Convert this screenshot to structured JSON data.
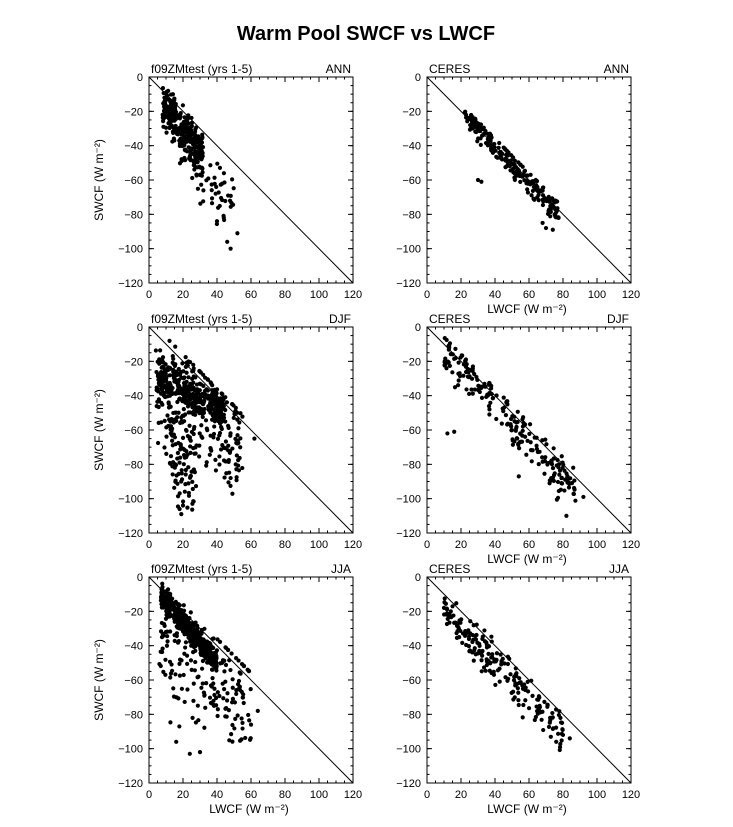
{
  "title": "Warm Pool SWCF vs LWCF",
  "colors": {
    "marker": "#000000",
    "frame": "#000000",
    "background": "#ffffff"
  },
  "chart_data": [
    {
      "type": "scatter",
      "left_label": "f09ZMtest (yrs 1-5)",
      "right_label": "ANN",
      "xlabel": "",
      "ylabel": "SWCF (W m⁻²)",
      "xlim": [
        0,
        120
      ],
      "ylim": [
        -120,
        0
      ],
      "xticks": [
        0,
        20,
        40,
        60,
        80,
        100,
        120
      ],
      "yticks": [
        0,
        -20,
        -40,
        -60,
        -80,
        -100,
        -120
      ],
      "reference_line": [
        [
          0,
          0
        ],
        [
          120,
          -120
        ]
      ],
      "clusters": [
        {
          "count": 320,
          "x": [
            8,
            32
          ],
          "slope": -1.25,
          "intercept": -6,
          "spread": 9,
          "dir": -1
        },
        {
          "count": 60,
          "x": [
            15,
            50
          ],
          "slope": -1.15,
          "intercept": -20,
          "spread": 13,
          "dir": -1
        }
      ],
      "points": [
        [
          48,
          -100
        ],
        [
          46,
          -96
        ],
        [
          52,
          -91
        ],
        [
          40,
          -84
        ],
        [
          44,
          -82
        ]
      ]
    },
    {
      "type": "scatter",
      "left_label": "CERES",
      "right_label": "ANN",
      "xlabel": "LWCF (W m⁻²)",
      "ylabel": "",
      "xlim": [
        0,
        120
      ],
      "ylim": [
        -120,
        0
      ],
      "xticks": [
        0,
        20,
        40,
        60,
        80,
        100,
        120
      ],
      "yticks": [
        0,
        -20,
        -40,
        -60,
        -80,
        -100,
        -120
      ],
      "reference_line": [
        [
          0,
          0
        ],
        [
          120,
          -120
        ]
      ],
      "clusters": [
        {
          "count": 230,
          "x": [
            22,
            78
          ],
          "slope": -1.02,
          "intercept": 0,
          "spread": 5,
          "dir": -1
        }
      ],
      "points": [
        [
          30,
          -60
        ],
        [
          32,
          -61
        ],
        [
          70,
          -88
        ],
        [
          74,
          -89
        ],
        [
          68,
          -85
        ]
      ]
    },
    {
      "type": "scatter",
      "left_label": "f09ZMtest (yrs 1-5)",
      "right_label": "DJF",
      "xlabel": "",
      "ylabel": "SWCF (W m⁻²)",
      "xlim": [
        0,
        120
      ],
      "ylim": [
        -120,
        0
      ],
      "xticks": [
        0,
        20,
        40,
        60,
        80,
        100,
        120
      ],
      "yticks": [
        0,
        -20,
        -40,
        -60,
        -80,
        -100,
        -120
      ],
      "reference_line": [
        [
          0,
          0
        ],
        [
          120,
          -120
        ]
      ],
      "clusters": [
        {
          "count": 300,
          "x": [
            5,
            45
          ],
          "slope": -0.55,
          "intercept": -25,
          "spread": 8,
          "dir": -1
        },
        {
          "count": 260,
          "x": [
            4,
            55
          ],
          "slope": -0.6,
          "intercept": -32,
          "spread": 25,
          "dir": -1
        },
        {
          "count": 80,
          "x": [
            12,
            28
          ],
          "slope": -0.8,
          "intercept": -65,
          "spread": 20,
          "dir": -1
        }
      ],
      "points": [
        [
          19,
          -109
        ],
        [
          18,
          -106
        ],
        [
          20,
          -104
        ],
        [
          62,
          -65
        ],
        [
          48,
          -88
        ]
      ]
    },
    {
      "type": "scatter",
      "left_label": "CERES",
      "right_label": "DJF",
      "xlabel": "LWCF (W m⁻²)",
      "ylabel": "",
      "xlim": [
        0,
        120
      ],
      "ylim": [
        -120,
        0
      ],
      "xticks": [
        0,
        20,
        40,
        60,
        80,
        100,
        120
      ],
      "yticks": [
        0,
        -20,
        -40,
        -60,
        -80,
        -100,
        -120
      ],
      "reference_line": [
        [
          0,
          0
        ],
        [
          120,
          -120
        ]
      ],
      "clusters": [
        {
          "count": 220,
          "x": [
            10,
            88
          ],
          "slope": -1.05,
          "intercept": -3,
          "spread": 10,
          "dir": -1
        }
      ],
      "points": [
        [
          12,
          -62
        ],
        [
          16,
          -61
        ],
        [
          54,
          -87
        ],
        [
          82,
          -110
        ],
        [
          92,
          -99
        ]
      ]
    },
    {
      "type": "scatter",
      "left_label": "f09ZMtest (yrs 1-5)",
      "right_label": "JJA",
      "xlabel": "LWCF (W m⁻²)",
      "ylabel": "SWCF (W m⁻²)",
      "xlim": [
        0,
        120
      ],
      "ylim": [
        -120,
        0
      ],
      "xticks": [
        0,
        20,
        40,
        60,
        80,
        100,
        120
      ],
      "yticks": [
        0,
        -20,
        -40,
        -60,
        -80,
        -100,
        -120
      ],
      "reference_line": [
        [
          0,
          0
        ],
        [
          120,
          -120
        ]
      ],
      "clusters": [
        {
          "count": 420,
          "x": [
            7,
            40
          ],
          "slope": -1.15,
          "intercept": -3,
          "spread": 5,
          "dir": -1
        },
        {
          "count": 200,
          "x": [
            6,
            60
          ],
          "slope": -0.55,
          "intercept": -38,
          "spread": 25,
          "dir": -1
        }
      ],
      "points": [
        [
          24,
          -103
        ],
        [
          30,
          -102
        ],
        [
          16,
          -96
        ],
        [
          60,
          -86
        ],
        [
          64,
          -78
        ],
        [
          55,
          -85
        ]
      ]
    },
    {
      "type": "scatter",
      "left_label": "CERES",
      "right_label": "JJA",
      "xlabel": "LWCF (W m⁻²)",
      "ylabel": "",
      "xlim": [
        0,
        120
      ],
      "ylim": [
        -120,
        0
      ],
      "xticks": [
        0,
        20,
        40,
        60,
        80,
        100,
        120
      ],
      "yticks": [
        0,
        -20,
        -40,
        -60,
        -80,
        -100,
        -120
      ],
      "reference_line": [
        [
          0,
          0
        ],
        [
          120,
          -120
        ]
      ],
      "clusters": [
        {
          "count": 200,
          "x": [
            10,
            80
          ],
          "slope": -1.0,
          "intercept": -10,
          "spread": 9,
          "dir": -1
        }
      ],
      "points": [
        [
          10,
          -18
        ],
        [
          14,
          -20
        ],
        [
          76,
          -96
        ],
        [
          84,
          -94
        ],
        [
          80,
          -92
        ]
      ]
    }
  ]
}
